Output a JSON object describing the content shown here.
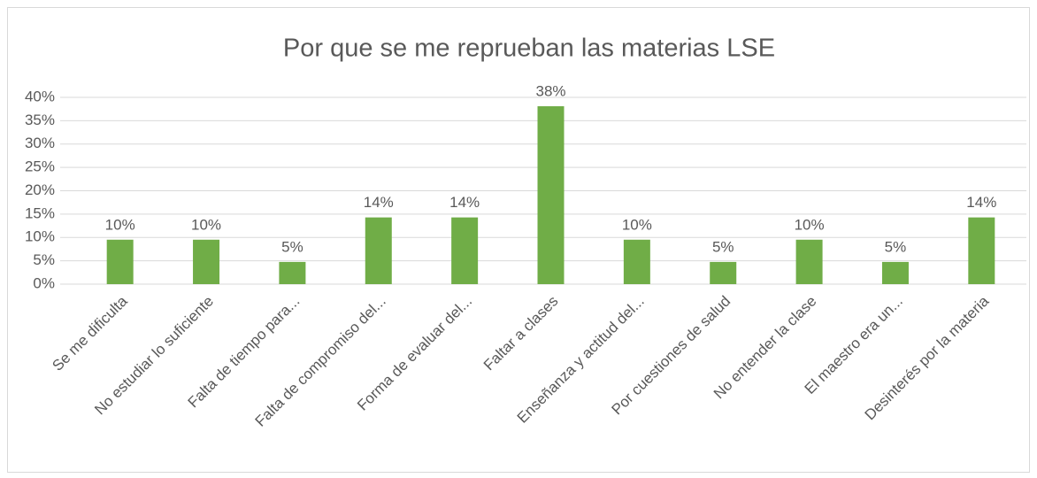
{
  "chart_data": {
    "type": "bar",
    "title": "Por que se me reprueban las materias LSE",
    "categories": [
      "Se me dificulta",
      "No estudiar lo suficiente",
      "Falta de tiempo para...",
      "Falta de compromiso del...",
      "Forma de evaluar del...",
      "Faltar a clases",
      "Enseñanza y actitud del...",
      "Por cuestiones de salud",
      "No entender la clase",
      "El maestro era un...",
      "Desinterés por la materia"
    ],
    "values": [
      9.52,
      9.52,
      4.76,
      14.29,
      14.29,
      38.1,
      9.52,
      4.76,
      9.52,
      4.76,
      14.29
    ],
    "value_labels": [
      "10%",
      "10%",
      "5%",
      "14%",
      "14%",
      "38%",
      "10%",
      "5%",
      "10%",
      "5%",
      "14%"
    ],
    "color": "#70ad47",
    "ylim": [
      0,
      40
    ],
    "yticks": [
      {
        "value": 0,
        "label": "0%"
      },
      {
        "value": 5,
        "label": "5%"
      },
      {
        "value": 10,
        "label": "10%"
      },
      {
        "value": 15,
        "label": "15%"
      },
      {
        "value": 20,
        "label": "20%"
      },
      {
        "value": 25,
        "label": "25%"
      },
      {
        "value": 30,
        "label": "30%"
      },
      {
        "value": 35,
        "label": "35%"
      },
      {
        "value": 40,
        "label": "40%"
      }
    ],
    "grid": true
  }
}
